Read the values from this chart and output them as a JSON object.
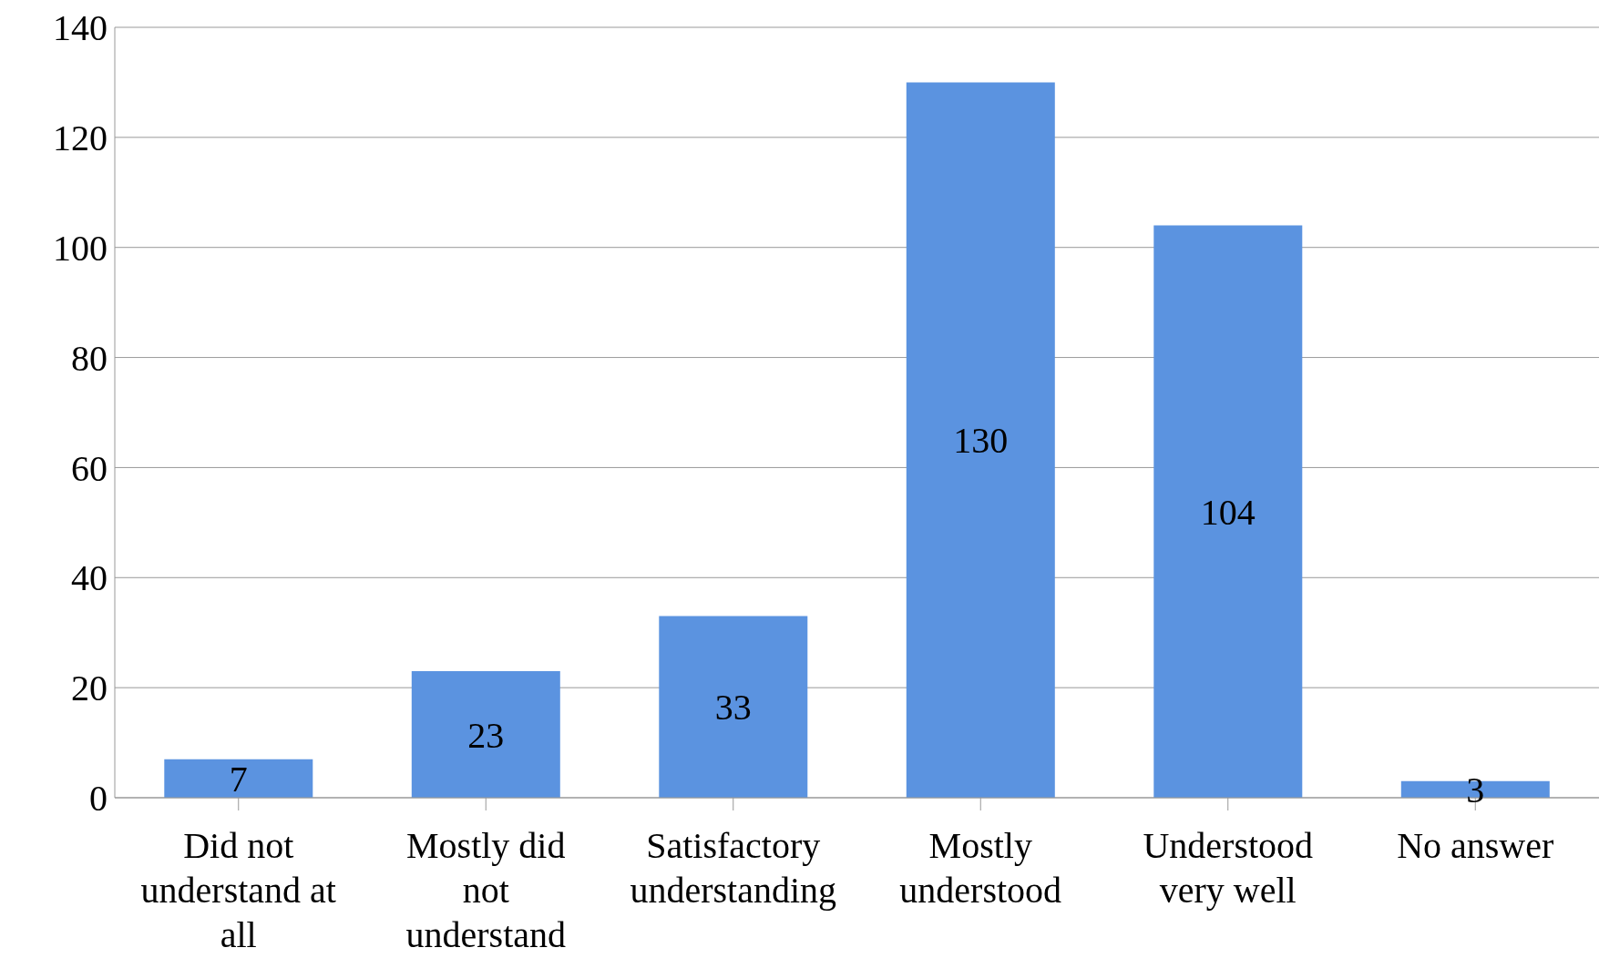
{
  "chart_data": {
    "type": "bar",
    "categories": [
      "Did not understand at all",
      "Mostly did not understand",
      "Satisfactory understanding",
      "Mostly understood",
      "Understood very well",
      "No answer"
    ],
    "values": [
      7,
      23,
      33,
      130,
      104,
      3
    ],
    "color": "#5b93e0",
    "ylim": [
      0,
      140
    ],
    "yticks": [
      0,
      20,
      40,
      60,
      80,
      100,
      120,
      140
    ],
    "grid": "y",
    "data_labels": true
  }
}
